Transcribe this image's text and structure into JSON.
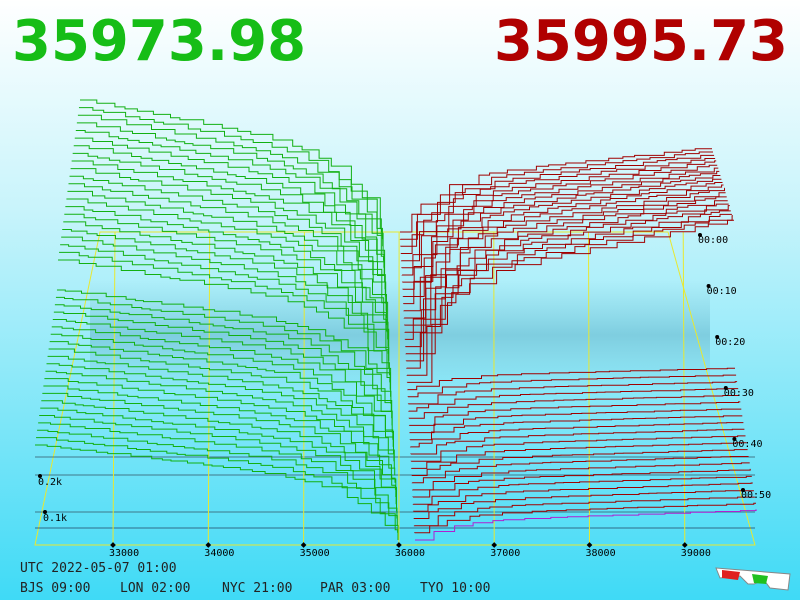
{
  "header": {
    "bid": "35973.98",
    "ask": "35995.73"
  },
  "price_axis": [
    "33000",
    "34000",
    "35000",
    "36000",
    "37000",
    "38000",
    "39000"
  ],
  "depth_axis": [
    "0.1k",
    "0.2k"
  ],
  "time_axis": [
    "00:00",
    "00:10",
    "00:20",
    "00:30",
    "00:40",
    "00:50"
  ],
  "footer": {
    "utc": "UTC 2022-05-07 01:00",
    "cities": [
      "BJS 09:00",
      "LON 02:00",
      "NYC 21:00",
      "PAR 03:00",
      "TYO 10:00"
    ]
  }
}
